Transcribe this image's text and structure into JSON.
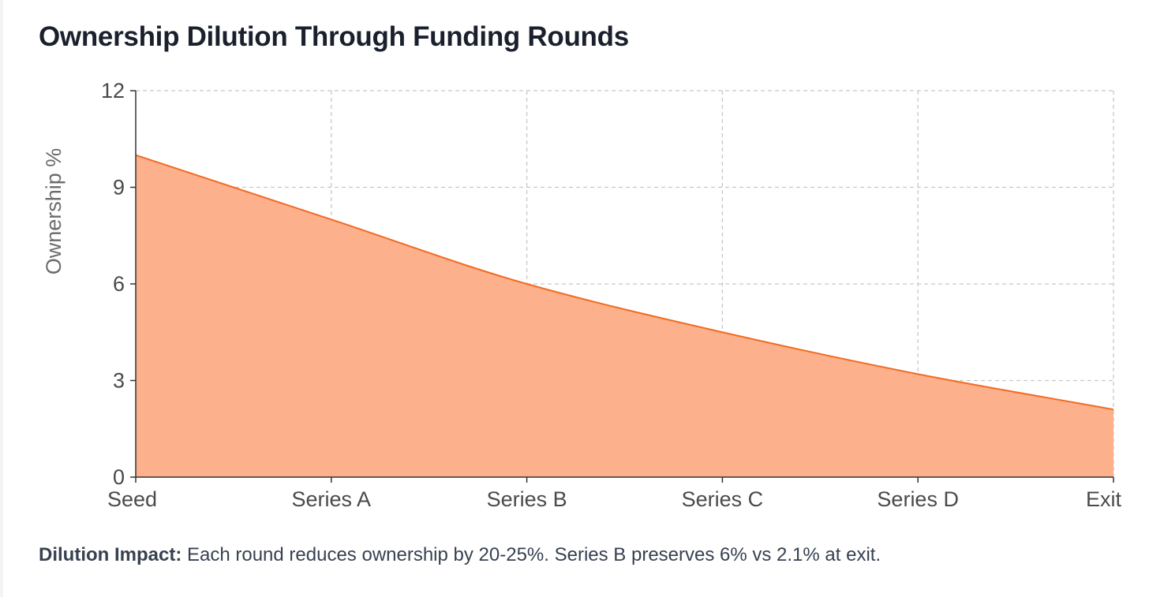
{
  "title": "Ownership Dilution Through Funding Rounds",
  "note": {
    "label": "Dilution Impact:",
    "text": " Each round reduces ownership by 20-25%. Series B preserves 6% vs 2.1% at exit."
  },
  "colors": {
    "line": "#f26b21",
    "area_fill": "#fdb08c",
    "grid": "#c8c8c8",
    "axis": "#333333"
  },
  "chart_data": {
    "type": "area",
    "categories": [
      "Seed",
      "Series A",
      "Series B",
      "Series C",
      "Series D",
      "Exit"
    ],
    "series": [
      {
        "values": [
          10,
          8,
          6,
          4.5,
          3.2,
          2.1
        ]
      }
    ],
    "xlabel": "",
    "ylabel": "Ownership %",
    "ylim": [
      0,
      12
    ],
    "yticks": [
      0,
      3,
      6,
      9,
      12
    ],
    "grid": true,
    "legend": false,
    "curve": "smooth"
  }
}
